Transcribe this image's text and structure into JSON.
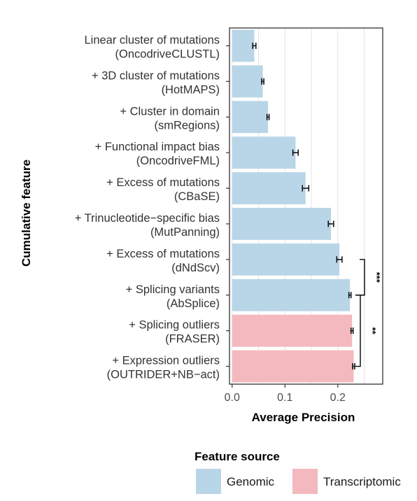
{
  "chart_data": {
    "type": "bar",
    "orientation": "horizontal",
    "categories": [
      [
        "Linear cluster of mutations",
        "(OncodriveCLUSTL)"
      ],
      [
        "+ 3D cluster of mutations",
        "(HotMAPS)"
      ],
      [
        "+ Cluster in domain",
        "(smRegions)"
      ],
      [
        "+ Functional impact bias",
        "(OncodriveFML)"
      ],
      [
        "+ Excess of mutations",
        "(CBaSE)"
      ],
      [
        "+ Trinucleotide−specific bias",
        "(MutPanning)"
      ],
      [
        "+ Excess of mutations",
        "(dNdScv)"
      ],
      [
        "+ Splicing variants",
        "(AbSplice)"
      ],
      [
        "+ Splicing outliers",
        "(FRASER)"
      ],
      [
        "+ Expression outliers",
        "(OUTRIDER+NB−act)"
      ]
    ],
    "values": [
      0.042,
      0.058,
      0.068,
      0.12,
      0.139,
      0.187,
      0.203,
      0.223,
      0.227,
      0.23
    ],
    "error_lo": [
      0.039,
      0.056,
      0.066,
      0.115,
      0.133,
      0.182,
      0.198,
      0.221,
      0.225,
      0.228
    ],
    "error_hi": [
      0.045,
      0.06,
      0.07,
      0.125,
      0.145,
      0.192,
      0.208,
      0.225,
      0.229,
      0.232
    ],
    "source": [
      "Genomic",
      "Genomic",
      "Genomic",
      "Genomic",
      "Genomic",
      "Genomic",
      "Genomic",
      "Genomic",
      "Transcriptomic",
      "Transcriptomic"
    ],
    "xlabel": "Average Precision",
    "ylabel": "Cumulative feature",
    "xlim": [
      -0.005,
      0.285
    ],
    "xticks": [
      0.0,
      0.1,
      0.2
    ],
    "xtick_labels": [
      "0.0",
      "0.1",
      "0.2"
    ],
    "grid": "vertical",
    "significance": [
      {
        "label": "***",
        "from": 6,
        "to": 7
      },
      {
        "label": "**",
        "from": 7,
        "to": 9
      }
    ],
    "legend": {
      "title": "Feature source",
      "position": "bottom",
      "entries": [
        {
          "name": "Genomic",
          "color": "#b9d5e8"
        },
        {
          "name": "Transcriptomic",
          "color": "#f3b9be"
        }
      ]
    },
    "colors": {
      "Genomic": "#b9d5e8",
      "Transcriptomic": "#f3b9be"
    }
  }
}
